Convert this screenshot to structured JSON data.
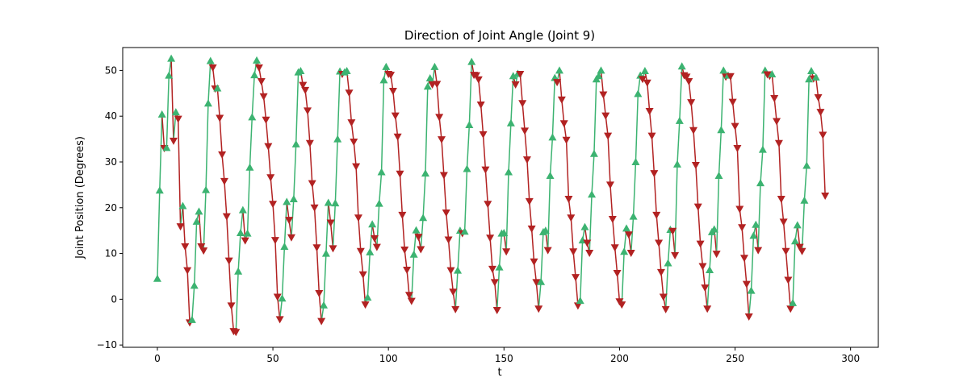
{
  "colors": {
    "up": "#3cb371",
    "down": "#b22222",
    "axis": "#000000",
    "background": "#ffffff"
  },
  "chart_data": {
    "type": "scatter",
    "title": "Direction of Joint Angle (Joint 9)",
    "xlabel": "t",
    "ylabel": "Joint Position (Degrees)",
    "xlim": [
      -15,
      312
    ],
    "ylim": [
      -10.5,
      55
    ],
    "xticks": [
      0,
      50,
      100,
      150,
      200,
      250,
      300
    ],
    "yticks": [
      -10,
      0,
      10,
      20,
      30,
      40,
      50
    ],
    "grid": false,
    "legend": "none",
    "marker_up": "triangle-up",
    "marker_down": "triangle-down",
    "y": [
      4.5,
      23.8,
      40.4,
      33.0,
      33.1,
      48.9,
      52.6,
      34.6,
      40.9,
      39.4,
      15.9,
      20.4,
      11.5,
      6.3,
      -5.1,
      -4.5,
      3.0,
      17.0,
      19.2,
      11.5,
      10.6,
      23.9,
      42.8,
      52.1,
      50.6,
      46.0,
      46.1,
      39.6,
      31.6,
      25.8,
      18.1,
      8.4,
      -1.4,
      -7.0,
      -7.2,
      6.1,
      14.5,
      19.5,
      12.8,
      14.4,
      28.8,
      39.8,
      49.0,
      52.2,
      50.6,
      47.6,
      44.3,
      39.2,
      33.4,
      26.6,
      20.8,
      12.9,
      0.5,
      -4.4,
      0.2,
      11.5,
      21.3,
      17.3,
      13.5,
      21.9,
      33.9,
      49.6,
      49.9,
      46.8,
      45.7,
      41.2,
      34.1,
      25.3,
      20.0,
      11.3,
      1.3,
      -4.8,
      -1.3,
      10.0,
      21.1,
      16.7,
      11.1,
      21.0,
      35.0,
      49.8,
      49.2,
      49.6,
      49.9,
      45.1,
      38.6,
      34.4,
      29.0,
      17.8,
      10.5,
      5.4,
      -1.2,
      0.4,
      10.3,
      16.4,
      13.3,
      11.4,
      20.9,
      27.8,
      47.9,
      50.8,
      49.2,
      49.0,
      45.5,
      40.1,
      35.5,
      27.4,
      18.4,
      10.8,
      6.4,
      0.9,
      -0.4,
      9.8,
      15.1,
      13.6,
      10.9,
      17.8,
      27.5,
      46.5,
      48.3,
      46.9,
      50.8,
      47.0,
      39.8,
      34.9,
      27.1,
      18.9,
      13.0,
      6.3,
      1.6,
      -2.2,
      6.3,
      15.0,
      14.4,
      14.8,
      28.5,
      38.1,
      51.9,
      49.0,
      48.9,
      48.0,
      42.5,
      36.0,
      28.3,
      20.8,
      13.4,
      6.6,
      3.7,
      -2.4,
      7.0,
      14.4,
      14.5,
      10.4,
      27.8,
      38.5,
      48.8,
      46.9,
      49.3,
      49.2,
      42.8,
      36.8,
      30.5,
      21.4,
      15.4,
      8.2,
      3.7,
      -2.1,
      3.8,
      14.7,
      15.0,
      10.7,
      27.0,
      35.4,
      48.4,
      47.4,
      50.0,
      43.6,
      38.4,
      34.8,
      21.9,
      17.8,
      10.4,
      4.8,
      -1.4,
      -0.3,
      12.9,
      15.8,
      12.3,
      10.1,
      22.9,
      31.8,
      48.1,
      48.8,
      50.0,
      44.7,
      40.1,
      35.7,
      25.0,
      17.5,
      11.3,
      5.7,
      -0.5,
      -1.2,
      10.4,
      15.5,
      14.1,
      10.1,
      18.1,
      30.0,
      44.9,
      48.9,
      48.1,
      49.9,
      47.3,
      41.1,
      35.7,
      27.5,
      18.4,
      12.3,
      5.9,
      0.5,
      -2.2,
      7.9,
      15.2,
      14.9,
      9.6,
      29.5,
      39.0,
      50.9,
      48.9,
      48.6,
      47.6,
      43.0,
      36.9,
      29.3,
      20.2,
      12.1,
      7.2,
      2.5,
      -2.1,
      6.4,
      14.7,
      15.3,
      9.9,
      27.0,
      37.0,
      50.0,
      48.6,
      48.9,
      48.7,
      43.1,
      37.8,
      33.0,
      19.7,
      15.7,
      9.0,
      3.3,
      -3.8,
      1.9,
      13.9,
      16.3,
      10.7,
      25.4,
      32.7,
      50.0,
      49.1,
      48.8,
      49.2,
      43.9,
      38.9,
      34.1,
      21.9,
      16.9,
      10.5,
      4.2,
      -2.1,
      -0.8,
      12.7,
      16.2,
      11.4,
      10.5,
      21.6,
      29.2,
      48.1,
      49.9,
      48.2,
      48.5,
      44.1,
      40.9,
      35.9,
      22.6
    ]
  }
}
